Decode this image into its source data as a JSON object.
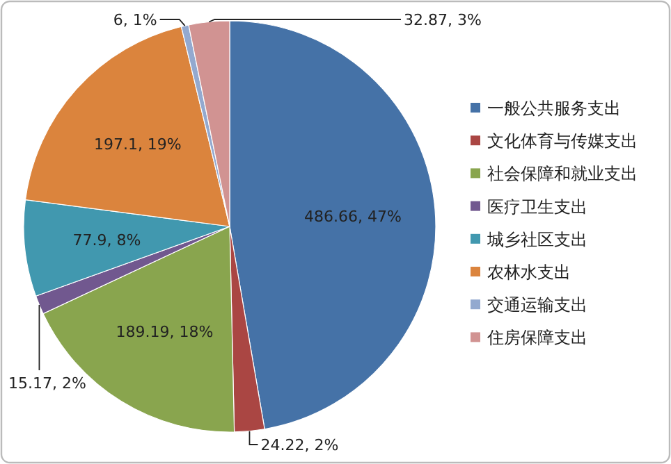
{
  "chart_data": {
    "type": "pie",
    "legend": "right",
    "categories": [
      "一般公共服务支出",
      "文化体育与传媒支出",
      "社会保障和就业支出",
      "医疗卫生支出",
      "城乡社区支出",
      "农林水支出",
      "交通运输支出",
      "住房保障支出"
    ],
    "values": [
      486.66,
      24.22,
      189.19,
      15.17,
      77.9,
      197.1,
      6,
      32.87
    ],
    "value_labels": [
      "486.66, 47%",
      "24.22, 2%",
      "189.19, 18%",
      "15.17, 2%",
      "77.9, 8%",
      "197.1, 19%",
      "6, 1%",
      "32.87, 3%"
    ],
    "colors": [
      "#4572a7",
      "#aa4643",
      "#89a54e",
      "#71588f",
      "#4198af",
      "#db843d",
      "#93a9cf",
      "#d19392"
    ]
  }
}
